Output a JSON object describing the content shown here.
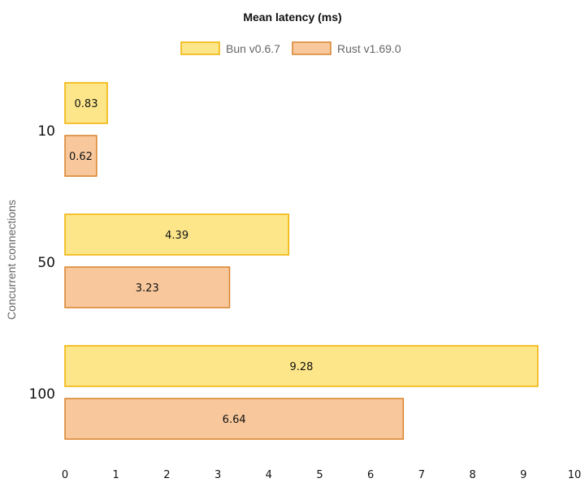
{
  "chart_data": {
    "type": "bar",
    "orientation": "horizontal",
    "title": "Mean latency (ms)",
    "xlabel": "",
    "ylabel": "Concurrent connections",
    "categories": [
      "10",
      "50",
      "100"
    ],
    "series": [
      {
        "name": "Bun v0.6.7",
        "values": [
          0.83,
          4.39,
          9.28
        ],
        "fill": "#fde68a",
        "stroke": "#f0b100"
      },
      {
        "name": "Rust v1.69.0",
        "values": [
          0.62,
          3.23,
          6.64
        ],
        "fill": "#f8c89c",
        "stroke": "#d9822b"
      }
    ],
    "xlim": [
      0,
      10
    ],
    "xticks": [
      "0",
      "1",
      "2",
      "3",
      "4",
      "5",
      "6",
      "7",
      "8",
      "9",
      "10"
    ],
    "grid": false,
    "legend_position": "top-center"
  }
}
